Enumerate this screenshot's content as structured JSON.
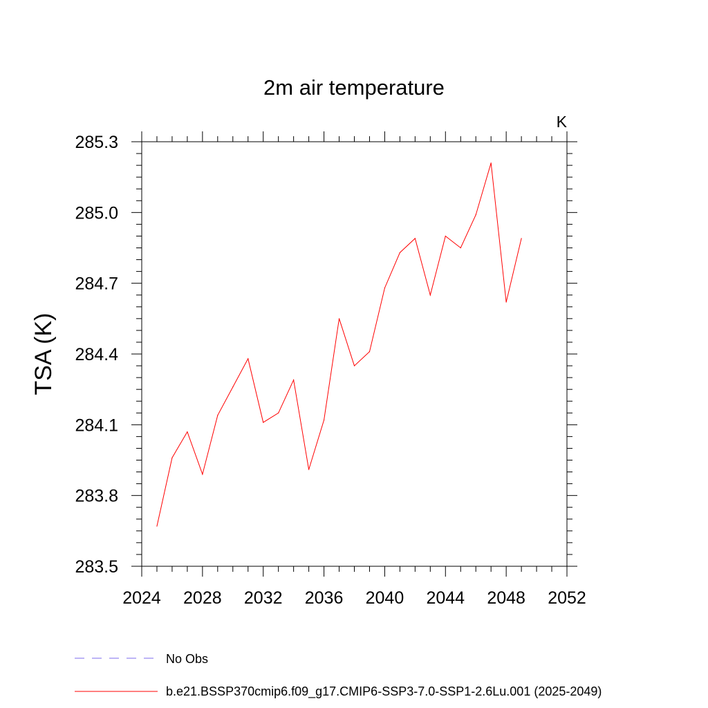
{
  "chart_data": {
    "type": "line",
    "title": "2m air temperature",
    "units": "K",
    "ylabel": "TSA  (K)",
    "xlabel": "",
    "xlim": [
      2024,
      2052
    ],
    "ylim": [
      283.5,
      285.3
    ],
    "xticks": [
      "2024",
      "2028",
      "2032",
      "2036",
      "2040",
      "2044",
      "2048",
      "2052"
    ],
    "yticks": [
      "285.3",
      "285.0",
      "284.7",
      "284.4",
      "284.1",
      "283.8",
      "283.5"
    ],
    "x": [
      2025,
      2026,
      2027,
      2028,
      2029,
      2030,
      2031,
      2032,
      2033,
      2034,
      2035,
      2036,
      2037,
      2038,
      2039,
      2040,
      2041,
      2042,
      2043,
      2044,
      2045,
      2046,
      2047,
      2048,
      2049
    ],
    "series": [
      {
        "name": "b.e21.BSSP370cmip6.f09_g17.CMIP6-SSP3-7.0-SSP1-2.6Lu.001 (2025-2049)",
        "color": "#ff0000",
        "values": [
          283.67,
          283.96,
          284.07,
          283.89,
          284.14,
          284.26,
          284.38,
          284.11,
          284.15,
          284.29,
          283.91,
          284.12,
          284.55,
          284.35,
          284.41,
          284.68,
          284.83,
          284.89,
          284.65,
          284.9,
          284.85,
          284.99,
          285.21,
          284.62,
          284.89
        ]
      }
    ],
    "legend": {
      "placement": "bottom",
      "entries": [
        {
          "label": "No Obs",
          "color": "#7b68ee",
          "style": "dashed"
        },
        {
          "label": "b.e21.BSSP370cmip6.f09_g17.CMIP6-SSP3-7.0-SSP1-2.6Lu.001 (2025-2049)",
          "color": "#ff0000",
          "style": "solid"
        }
      ]
    },
    "grid": false
  }
}
